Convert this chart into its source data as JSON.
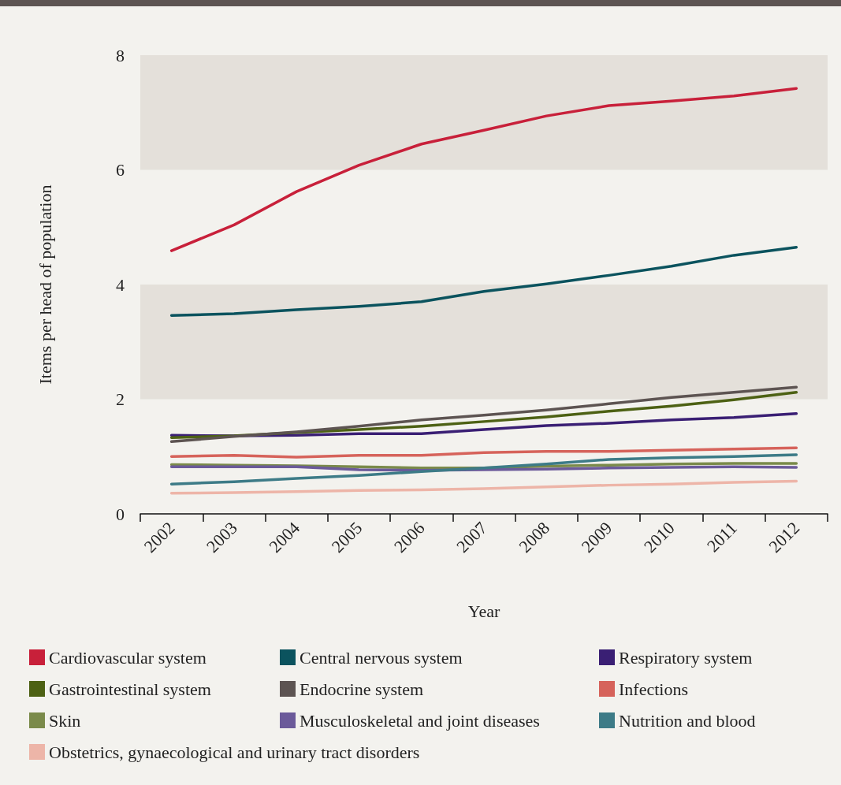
{
  "chart_data": {
    "type": "line",
    "xlabel": "Year",
    "ylabel": "Items per head of population",
    "categories": [
      "2002",
      "2003",
      "2004",
      "2005",
      "2006",
      "2007",
      "2008",
      "2009",
      "2010",
      "2011",
      "2012"
    ],
    "ylim": [
      0,
      8
    ],
    "yticks": [
      0,
      2,
      4,
      6,
      8
    ],
    "grid": false,
    "legend": "bottom",
    "marker": "none",
    "line_style": "solid",
    "bands": [
      {
        "axis": "y",
        "from": 2,
        "to": 4,
        "color": "#e4e0da"
      },
      {
        "axis": "y",
        "from": 6,
        "to": 8,
        "color": "#e4e0da"
      }
    ],
    "series": [
      {
        "name": "Cardiovascular system",
        "color": "#c8203a",
        "values": [
          4.59,
          5.04,
          5.62,
          6.08,
          6.45,
          6.69,
          6.94,
          7.12,
          7.2,
          7.29,
          7.42
        ]
      },
      {
        "name": "Central nervous system",
        "color": "#0b535e",
        "values": [
          3.46,
          3.49,
          3.56,
          3.62,
          3.7,
          3.88,
          4.01,
          4.16,
          4.32,
          4.51,
          4.65
        ]
      },
      {
        "name": "Respiratory system",
        "color": "#3a1f74",
        "values": [
          1.37,
          1.36,
          1.37,
          1.4,
          1.4,
          1.47,
          1.54,
          1.58,
          1.64,
          1.68,
          1.75
        ]
      },
      {
        "name": "Gastrointestinal system",
        "color": "#4d6114",
        "values": [
          1.33,
          1.36,
          1.42,
          1.47,
          1.53,
          1.61,
          1.69,
          1.79,
          1.88,
          1.99,
          2.12
        ]
      },
      {
        "name": "Endocrine system",
        "color": "#5d5452",
        "values": [
          1.26,
          1.35,
          1.43,
          1.53,
          1.64,
          1.72,
          1.81,
          1.92,
          2.03,
          2.12,
          2.21
        ]
      },
      {
        "name": "Infections",
        "color": "#d6635b",
        "values": [
          1.0,
          1.02,
          0.99,
          1.02,
          1.02,
          1.07,
          1.09,
          1.09,
          1.11,
          1.13,
          1.15
        ]
      },
      {
        "name": "Skin",
        "color": "#7a8a4a",
        "values": [
          0.86,
          0.85,
          0.84,
          0.82,
          0.8,
          0.8,
          0.83,
          0.85,
          0.87,
          0.88,
          0.88
        ]
      },
      {
        "name": "Musculoskeletal and joint diseases",
        "color": "#6b5a9a",
        "values": [
          0.82,
          0.82,
          0.82,
          0.77,
          0.76,
          0.77,
          0.78,
          0.8,
          0.81,
          0.82,
          0.81
        ]
      },
      {
        "name": "Nutrition and blood",
        "color": "#3d7b87",
        "values": [
          0.52,
          0.56,
          0.62,
          0.67,
          0.74,
          0.8,
          0.87,
          0.95,
          0.98,
          1.0,
          1.03
        ]
      },
      {
        "name": "Obstetrics, gynaecological and urinary tract disorders",
        "color": "#edb5a8",
        "values": [
          0.36,
          0.37,
          0.39,
          0.41,
          0.42,
          0.44,
          0.47,
          0.5,
          0.52,
          0.55,
          0.57
        ]
      }
    ]
  }
}
